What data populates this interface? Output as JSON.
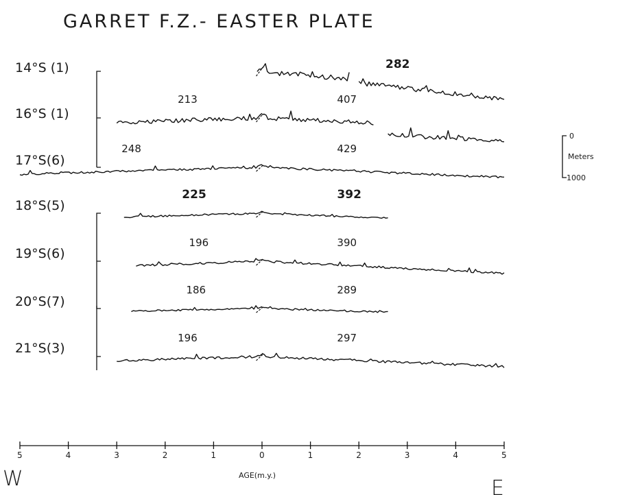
{
  "chart_data": {
    "type": "line",
    "title": "GARRET F.Z.- EASTER PLATE",
    "xlabel": "AGE(m.y.)",
    "xlim": [
      -5,
      5
    ],
    "x_ticks": [
      "5",
      "4",
      "3",
      "2",
      "1",
      "0",
      "1",
      "2",
      "3",
      "4",
      "5"
    ],
    "direction_west": "W",
    "direction_east": "E",
    "depth_scale": {
      "top": "0",
      "label": "Meters",
      "bottom": "1000",
      "meters": 1000
    },
    "series": [
      {
        "name": "14°S (1)",
        "extent_left": [
          -0.1,
          1.8
        ],
        "extent_right": [
          2.0,
          5.0
        ],
        "label_left": "",
        "label_right": "282",
        "right_bold": true,
        "drop_m": 650,
        "tail_m": 120,
        "amp_m": 130
      },
      {
        "name": "16°S (1)",
        "extent_left": [
          -3.0,
          0.0
        ],
        "extent_right": [
          0.0,
          2.3
        ],
        "extent_right2": [
          2.6,
          5.0
        ],
        "right2_offset_m": 280,
        "label_left": "213",
        "label_right": "407",
        "right_bold": false,
        "drop_m": 260,
        "tail_m": 140,
        "amp_m": 110
      },
      {
        "name": "17°S(6)",
        "extent_left": [
          -5.0,
          0.0
        ],
        "extent_right": [
          0.0,
          5.0
        ],
        "label_left": "248",
        "label_right": "429",
        "right_bold": false,
        "drop_m": 240,
        "tail_m": 100,
        "amp_m": 55
      },
      {
        "name": "18°S(5)",
        "extent_left": [
          -2.85,
          0.0
        ],
        "extent_right": [
          0.0,
          2.6
        ],
        "label_left": "225",
        "label_right": "392",
        "left_bold": true,
        "right_bold": true,
        "drop_m": 230,
        "tail_m": 110,
        "amp_m": 45
      },
      {
        "name": "19°S(6)",
        "extent_left": [
          -2.6,
          0.0
        ],
        "extent_right": [
          0.0,
          5.0
        ],
        "label_left": "196",
        "label_right": "390",
        "right_bold": false,
        "drop_m": 290,
        "tail_m": 150,
        "amp_m": 55
      },
      {
        "name": "20°S(7)",
        "extent_left": [
          -2.7,
          0.0
        ],
        "extent_right": [
          0.0,
          2.6
        ],
        "label_left": "186",
        "label_right": "289",
        "right_bold": false,
        "drop_m": 170,
        "tail_m": 60,
        "amp_m": 40
      },
      {
        "name": "21°S(3)",
        "extent_left": [
          -3.0,
          0.0
        ],
        "extent_right": [
          0.0,
          5.0
        ],
        "label_left": "196",
        "label_right": "297",
        "right_bold": false,
        "drop_m": 240,
        "tail_m": 130,
        "amp_m": 60
      }
    ]
  }
}
